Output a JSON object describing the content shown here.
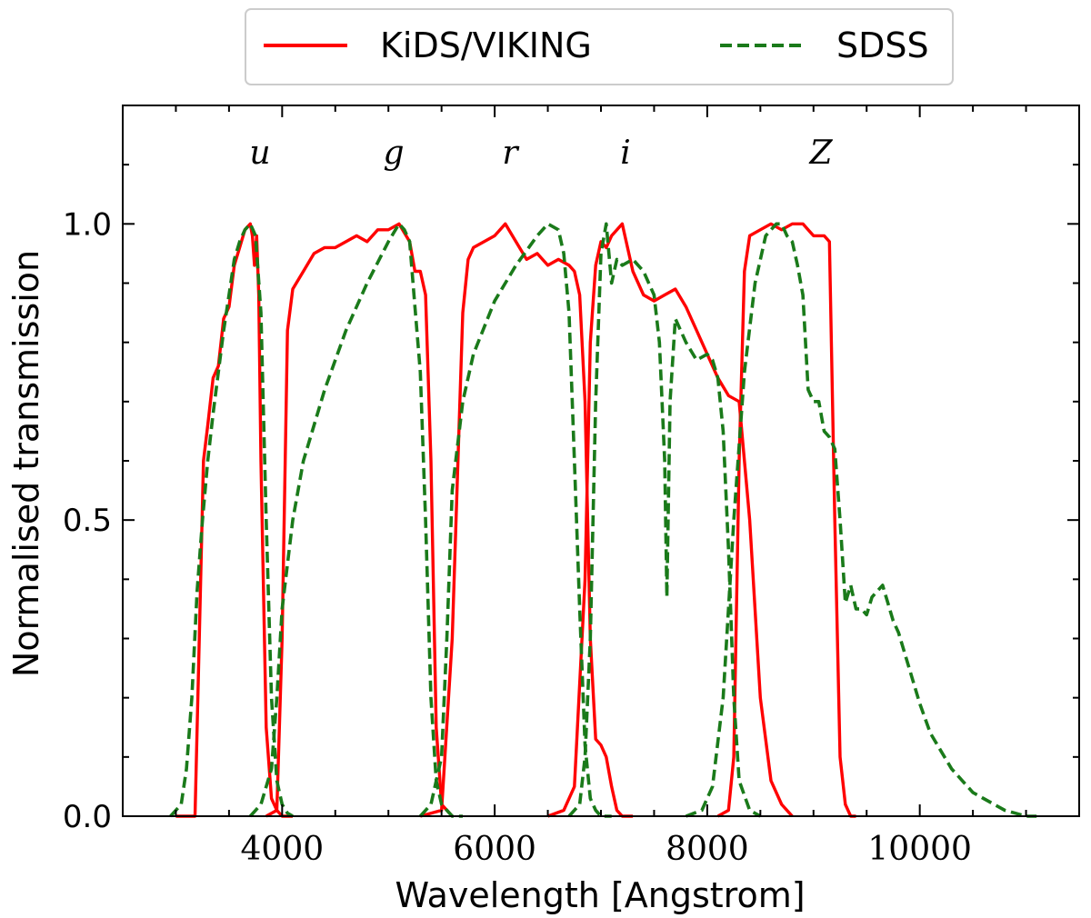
{
  "chart_data": {
    "type": "line",
    "xlabel": "Wavelength [Angstrom]",
    "ylabel": "Normalised transmission",
    "xlim": [
      2500,
      11500
    ],
    "ylim": [
      0,
      1.2
    ],
    "x_ticks": [
      4000,
      6000,
      8000,
      10000
    ],
    "x_tick_labels": [
      "4000",
      "6000",
      "8000",
      "10000"
    ],
    "y_ticks": [
      0.0,
      0.5,
      1.0
    ],
    "y_tick_labels": [
      "0.0",
      "0.5",
      "1.0"
    ],
    "band_labels": [
      {
        "text": "u",
        "x": 3650,
        "y": 1.12
      },
      {
        "text": "g",
        "x": 5150,
        "y": 1.12
      },
      {
        "text": "r",
        "x": 6400,
        "y": 1.12
      },
      {
        "text": "i",
        "x": 7550,
        "y": 1.12
      },
      {
        "text": "Z",
        "x": 9550,
        "y": 1.12
      }
    ],
    "legend": {
      "placement": "top-center",
      "entries": [
        "KiDS/VIKING",
        "SDSS"
      ]
    },
    "colors": {
      "kids": "#ff0000",
      "sdss": "#1a7a1a"
    },
    "series": [
      {
        "name": "KiDS/VIKING",
        "band": "u",
        "style": "solid",
        "x": [
          3000,
          3180,
          3220,
          3260,
          3300,
          3350,
          3400,
          3450,
          3500,
          3550,
          3600,
          3650,
          3700,
          3720,
          3740,
          3760,
          3780,
          3800,
          3850,
          3900,
          3950,
          4000,
          4100
        ],
        "y": [
          0,
          0,
          0.3,
          0.6,
          0.66,
          0.74,
          0.76,
          0.84,
          0.86,
          0.93,
          0.96,
          0.99,
          1.0,
          0.98,
          0.93,
          0.98,
          0.88,
          0.6,
          0.15,
          0.03,
          0.01,
          0,
          0
        ]
      },
      {
        "name": "KiDS/VIKING",
        "band": "g",
        "style": "solid",
        "x": [
          3850,
          3950,
          4000,
          4050,
          4100,
          4200,
          4300,
          4400,
          4500,
          4600,
          4700,
          4800,
          4900,
          5000,
          5100,
          5200,
          5250,
          5300,
          5350,
          5400,
          5450,
          5500,
          5600
        ],
        "y": [
          0,
          0.01,
          0.3,
          0.82,
          0.89,
          0.92,
          0.95,
          0.96,
          0.96,
          0.97,
          0.98,
          0.97,
          0.99,
          0.99,
          1.0,
          0.97,
          0.92,
          0.92,
          0.88,
          0.6,
          0.15,
          0.02,
          0
        ],
        "bumps": true
      },
      {
        "name": "KiDS/VIKING",
        "band": "r",
        "style": "solid",
        "x": [
          5300,
          5500,
          5600,
          5700,
          5750,
          5800,
          5900,
          6000,
          6100,
          6200,
          6300,
          6400,
          6500,
          6600,
          6700,
          6750,
          6800,
          6850,
          6900,
          6950,
          7000,
          7050,
          7100,
          7150,
          7200,
          7300
        ],
        "y": [
          0,
          0.01,
          0.3,
          0.85,
          0.94,
          0.96,
          0.97,
          0.98,
          1.0,
          0.97,
          0.94,
          0.95,
          0.93,
          0.94,
          0.93,
          0.92,
          0.88,
          0.7,
          0.3,
          0.13,
          0.12,
          0.1,
          0.05,
          0.01,
          0,
          0
        ]
      },
      {
        "name": "KiDS/VIKING",
        "band": "i",
        "style": "solid",
        "x": [
          6500,
          6650,
          6750,
          6850,
          6900,
          6950,
          7000,
          7050,
          7100,
          7200,
          7300,
          7400,
          7500,
          7600,
          7700,
          7800,
          7900,
          8000,
          8100,
          8200,
          8300,
          8400,
          8500,
          8600,
          8700,
          8800
        ],
        "y": [
          0,
          0.01,
          0.05,
          0.4,
          0.8,
          0.93,
          0.97,
          0.96,
          0.98,
          1.0,
          0.92,
          0.88,
          0.87,
          0.88,
          0.89,
          0.86,
          0.82,
          0.78,
          0.74,
          0.71,
          0.7,
          0.5,
          0.2,
          0.06,
          0.02,
          0
        ]
      },
      {
        "name": "KiDS/VIKING",
        "band": "Z",
        "style": "solid",
        "x": [
          8100,
          8200,
          8250,
          8300,
          8350,
          8400,
          8500,
          8600,
          8700,
          8800,
          8900,
          9000,
          9100,
          9150,
          9200,
          9250,
          9300,
          9350,
          9400
        ],
        "y": [
          0,
          0.01,
          0.1,
          0.6,
          0.92,
          0.98,
          0.99,
          1.0,
          0.99,
          1.0,
          1.0,
          0.98,
          0.98,
          0.97,
          0.5,
          0.1,
          0.02,
          0,
          0
        ]
      },
      {
        "name": "SDSS",
        "band": "u",
        "style": "dashed",
        "x": [
          2950,
          3050,
          3100,
          3150,
          3200,
          3250,
          3300,
          3350,
          3400,
          3450,
          3500,
          3550,
          3600,
          3650,
          3700,
          3750,
          3800,
          3850,
          3900,
          3950,
          4000,
          4050,
          4100
        ],
        "y": [
          0,
          0.02,
          0.08,
          0.2,
          0.38,
          0.5,
          0.6,
          0.68,
          0.75,
          0.82,
          0.88,
          0.94,
          0.97,
          0.99,
          1.0,
          0.98,
          0.85,
          0.5,
          0.2,
          0.06,
          0.02,
          0.005,
          0
        ]
      },
      {
        "name": "SDSS",
        "band": "g",
        "style": "dashed",
        "x": [
          3700,
          3800,
          3900,
          3950,
          4000,
          4100,
          4200,
          4400,
          4600,
          4800,
          5000,
          5100,
          5150,
          5200,
          5250,
          5300,
          5350,
          5400,
          5450,
          5500,
          5600,
          5700
        ],
        "y": [
          0,
          0.02,
          0.08,
          0.2,
          0.35,
          0.5,
          0.6,
          0.72,
          0.82,
          0.9,
          0.97,
          1.0,
          0.99,
          0.97,
          0.86,
          0.75,
          0.5,
          0.2,
          0.06,
          0.02,
          0,
          0
        ]
      },
      {
        "name": "SDSS",
        "band": "r",
        "style": "dashed",
        "x": [
          5300,
          5400,
          5500,
          5550,
          5600,
          5700,
          5800,
          6000,
          6200,
          6400,
          6500,
          6600,
          6650,
          6700,
          6750,
          6800,
          6850,
          6900,
          6950,
          7000,
          7100
        ],
        "y": [
          0,
          0.02,
          0.1,
          0.3,
          0.55,
          0.7,
          0.78,
          0.87,
          0.93,
          0.98,
          1.0,
          0.99,
          0.95,
          0.85,
          0.6,
          0.35,
          0.12,
          0.03,
          0.01,
          0,
          0
        ]
      },
      {
        "name": "SDSS",
        "band": "i",
        "style": "dashed",
        "x": [
          6700,
          6800,
          6850,
          6900,
          6950,
          7000,
          7050,
          7100,
          7150,
          7200,
          7300,
          7400,
          7500,
          7550,
          7600,
          7620,
          7650,
          7700,
          7800,
          7900,
          8000,
          8050,
          8100,
          8150,
          8200,
          8250,
          8300,
          8400,
          8500
        ],
        "y": [
          0,
          0.02,
          0.1,
          0.3,
          0.7,
          0.95,
          1.0,
          0.9,
          0.94,
          0.93,
          0.94,
          0.92,
          0.88,
          0.8,
          0.6,
          0.37,
          0.7,
          0.84,
          0.8,
          0.77,
          0.78,
          0.77,
          0.74,
          0.65,
          0.45,
          0.2,
          0.06,
          0.01,
          0
        ]
      },
      {
        "name": "SDSS",
        "band": "Z",
        "style": "dashed",
        "x": [
          7800,
          7950,
          8050,
          8150,
          8250,
          8350,
          8450,
          8550,
          8650,
          8700,
          8750,
          8800,
          8850,
          8900,
          8950,
          9000,
          9050,
          9100,
          9150,
          9200,
          9250,
          9300,
          9350,
          9400,
          9450,
          9500,
          9550,
          9600,
          9650,
          9700,
          9750,
          9800,
          9900,
          10000,
          10100,
          10200,
          10300,
          10400,
          10500,
          10600,
          10700,
          10800,
          10900,
          11000,
          11100
        ],
        "y": [
          0,
          0.01,
          0.05,
          0.2,
          0.5,
          0.75,
          0.9,
          0.98,
          1.0,
          1.0,
          0.98,
          0.97,
          0.93,
          0.88,
          0.72,
          0.7,
          0.7,
          0.65,
          0.64,
          0.62,
          0.5,
          0.36,
          0.39,
          0.35,
          0.35,
          0.34,
          0.37,
          0.38,
          0.39,
          0.36,
          0.33,
          0.31,
          0.25,
          0.19,
          0.14,
          0.11,
          0.08,
          0.06,
          0.04,
          0.03,
          0.02,
          0.01,
          0.005,
          0,
          0
        ]
      }
    ]
  }
}
